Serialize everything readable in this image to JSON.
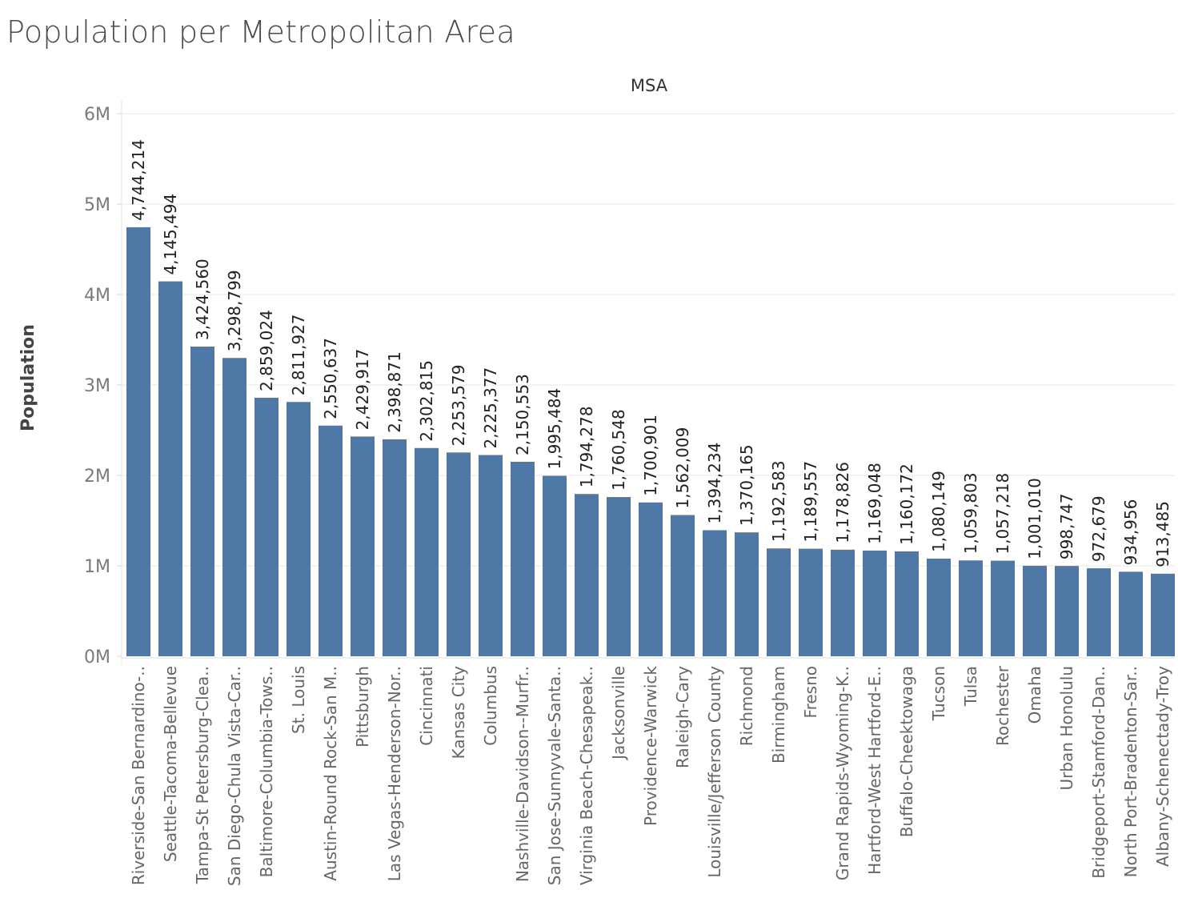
{
  "chart_data": {
    "type": "bar",
    "title": "Population per Metropolitan Area",
    "x_header": "MSA",
    "ylabel": "Population",
    "ylim": [
      0,
      6000000
    ],
    "yticks": [
      {
        "value": 0,
        "label": "0M"
      },
      {
        "value": 1000000,
        "label": "1M"
      },
      {
        "value": 2000000,
        "label": "2M"
      },
      {
        "value": 3000000,
        "label": "3M"
      },
      {
        "value": 4000000,
        "label": "4M"
      },
      {
        "value": 5000000,
        "label": "5M"
      },
      {
        "value": 6000000,
        "label": "6M"
      }
    ],
    "grid": true,
    "bar_color": "#4e79a7",
    "categories": [
      "Riverside-San Bernardino-..",
      "Seattle-Tacoma-Bellevue",
      "Tampa-St Petersburg-Clea..",
      "San Diego-Chula Vista-Car..",
      "Baltimore-Columbia-Tows..",
      "St. Louis",
      "Austin-Round Rock-San M..",
      "Pittsburgh",
      "Las Vegas-Henderson-Nor..",
      "Cincinnati",
      "Kansas City",
      "Columbus",
      "Nashville-Davidson--Murfr..",
      "San Jose-Sunnyvale-Santa..",
      "Virginia Beach-Chesapeak..",
      "Jacksonville",
      "Providence-Warwick",
      "Raleigh-Cary",
      "Louisville/Jefferson County",
      "Richmond",
      "Birmingham",
      "Fresno",
      "Grand Rapids-Wyoming-K..",
      "Hartford-West Hartford-E..",
      "Buffalo-Cheektowaga",
      "Tucson",
      "Tulsa",
      "Rochester",
      "Omaha",
      "Urban Honolulu",
      "Bridgeport-Stamford-Dan..",
      "North Port-Bradenton-Sar..",
      "Albany-Schenectady-Troy"
    ],
    "values": [
      4744214,
      4145494,
      3424560,
      3298799,
      2859024,
      2811927,
      2550637,
      2429917,
      2398871,
      2302815,
      2253579,
      2225377,
      2150553,
      1995484,
      1794278,
      1760548,
      1700901,
      1562009,
      1394234,
      1370165,
      1192583,
      1189557,
      1178826,
      1169048,
      1160172,
      1080149,
      1059803,
      1057218,
      1001010,
      998747,
      972679,
      934956,
      913485
    ],
    "value_labels": [
      "4,744,214",
      "4,145,494",
      "3,424,560",
      "3,298,799",
      "2,859,024",
      "2,811,927",
      "2,550,637",
      "2,429,917",
      "2,398,871",
      "2,302,815",
      "2,253,579",
      "2,225,377",
      "2,150,553",
      "1,995,484",
      "1,794,278",
      "1,760,548",
      "1,700,901",
      "1,562,009",
      "1,394,234",
      "1,370,165",
      "1,192,583",
      "1,189,557",
      "1,178,826",
      "1,169,048",
      "1,160,172",
      "1,080,149",
      "1,059,803",
      "1,057,218",
      "1,001,010",
      "998,747",
      "972,679",
      "934,956",
      "913,485"
    ]
  }
}
